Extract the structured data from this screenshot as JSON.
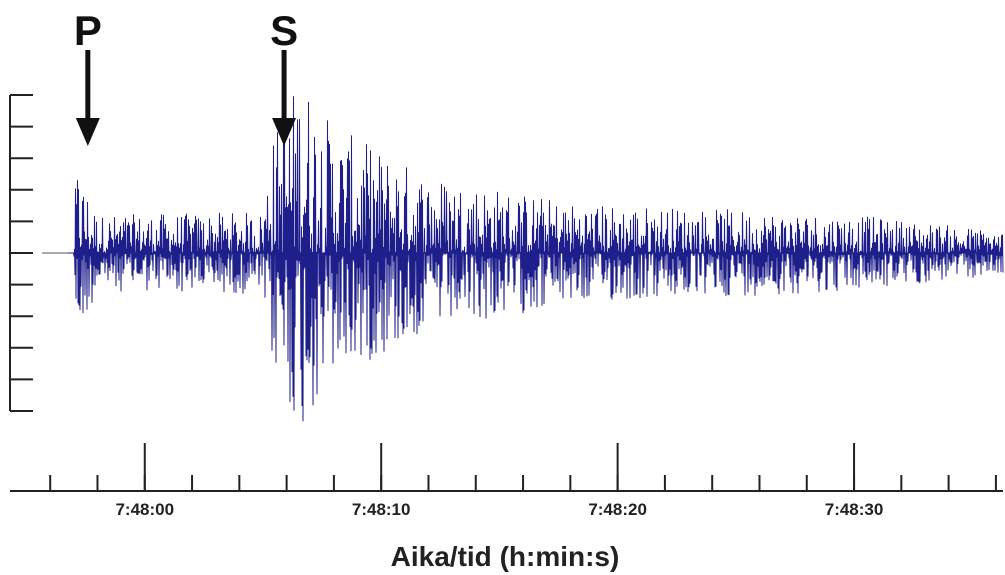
{
  "chart_data": {
    "type": "line",
    "title": "",
    "xlabel": "Aika/tid (h:min:s)",
    "ylabel": "",
    "xlim": [
      "7:47:54.3",
      "7:48:36.3"
    ],
    "ylim": [
      -5,
      5
    ],
    "x_ticks_major": [
      "7:48:00",
      "7:48:10",
      "7:48:20",
      "7:48:30"
    ],
    "y_tick_count": 11,
    "grid": false,
    "legend": "none",
    "series": [
      {
        "color": "#1f1f8c",
        "note_shape": "seismogram trace",
        "envelope": [
          {
            "t": "7:47:54.3",
            "amp": 0.0
          },
          {
            "t": "7:47:57.0",
            "amp": 0.0
          },
          {
            "t": "7:47:57.1",
            "amp": 2.9
          },
          {
            "t": "7:47:58.0",
            "amp": 1.2
          },
          {
            "t": "7:48:05.0",
            "amp": 1.3
          },
          {
            "t": "7:48:05.3",
            "amp": 3.5
          },
          {
            "t": "7:48:06.6",
            "amp": 5.8
          },
          {
            "t": "7:48:08.0",
            "amp": 4.0
          },
          {
            "t": "7:48:12.0",
            "amp": 2.5
          },
          {
            "t": "7:48:18.0",
            "amp": 1.6
          },
          {
            "t": "7:48:30.0",
            "amp": 1.2
          },
          {
            "t": "7:48:36.3",
            "amp": 0.7
          }
        ]
      }
    ],
    "annotations": [
      {
        "text": "P",
        "t": "7:47:57.0",
        "type": "arrow-down"
      },
      {
        "text": "S",
        "t": "7:48:05.3",
        "type": "arrow-down"
      }
    ]
  }
}
